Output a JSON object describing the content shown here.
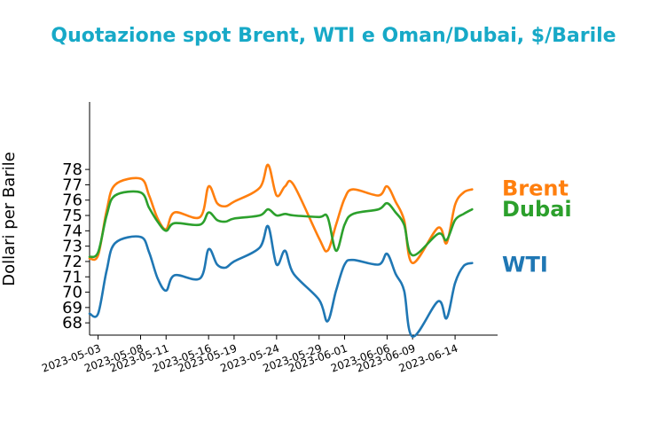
{
  "chart_data": {
    "type": "line",
    "title": "Quotazione spot Brent, WTI e Oman/Dubai, $/Barile",
    "xlabel": "",
    "ylabel": "Dollari per Barile",
    "ylim": [
      67.2,
      82.4
    ],
    "yticks": [
      68,
      69,
      70,
      71,
      72,
      73,
      74,
      75,
      76,
      77,
      78
    ],
    "xticks": [
      "2023-05-03",
      "2023-05-08",
      "2023-05-11",
      "2023-05-16",
      "2023-05-19",
      "2023-05-24",
      "2023-05-29",
      "2023-06-01",
      "2023-06-06",
      "2023-06-09",
      "2023-06-14"
    ],
    "x": [
      "2023-05-02",
      "2023-05-03",
      "2023-05-04",
      "2023-05-05",
      "2023-05-08",
      "2023-05-09",
      "2023-05-10",
      "2023-05-11",
      "2023-05-12",
      "2023-05-15",
      "2023-05-16",
      "2023-05-17",
      "2023-05-18",
      "2023-05-19",
      "2023-05-22",
      "2023-05-23",
      "2023-05-24",
      "2023-05-25",
      "2023-05-26",
      "2023-05-29",
      "2023-05-30",
      "2023-05-31",
      "2023-06-01",
      "2023-06-02",
      "2023-06-05",
      "2023-06-06",
      "2023-06-07",
      "2023-06-08",
      "2023-06-09",
      "2023-06-12",
      "2023-06-13",
      "2023-06-14",
      "2023-06-15",
      "2023-06-16"
    ],
    "series": [
      {
        "name": "Brent",
        "color": "#ff7f0e",
        "label_color": "#ff7f0e",
        "values": [
          72.2,
          72.4,
          75.3,
          77.0,
          77.4,
          76.3,
          74.8,
          74.1,
          75.2,
          74.9,
          76.9,
          75.8,
          75.6,
          75.9,
          76.8,
          78.3,
          76.3,
          76.9,
          77.0,
          73.5,
          72.7,
          74.4,
          76.1,
          76.7,
          76.3,
          76.9,
          75.9,
          74.7,
          71.9,
          74.2,
          73.2,
          75.7,
          76.5,
          76.7
        ]
      },
      {
        "name": "Dubai",
        "color": "#2ca02c",
        "label_color": "#2ca02c",
        "values": [
          72.3,
          72.6,
          75.0,
          76.3,
          76.5,
          75.5,
          74.6,
          74.0,
          74.5,
          74.4,
          75.2,
          74.7,
          74.6,
          74.8,
          75.0,
          75.4,
          75.0,
          75.1,
          75.0,
          74.9,
          74.9,
          72.7,
          74.4,
          75.1,
          75.4,
          75.8,
          75.2,
          74.4,
          72.4,
          73.8,
          73.4,
          74.7,
          75.1,
          75.4
        ]
      },
      {
        "name": "WTI",
        "color": "#1f77b4",
        "label_color": "#1f77b4",
        "values": [
          68.6,
          68.6,
          71.4,
          73.2,
          73.6,
          72.6,
          70.9,
          70.1,
          71.1,
          70.9,
          72.8,
          71.8,
          71.6,
          72.0,
          72.9,
          74.3,
          71.8,
          72.7,
          71.2,
          69.5,
          68.1,
          70.1,
          71.8,
          72.1,
          71.8,
          72.5,
          71.2,
          70.1,
          67.1,
          69.4,
          68.3,
          70.6,
          71.7,
          71.9
        ]
      }
    ]
  }
}
